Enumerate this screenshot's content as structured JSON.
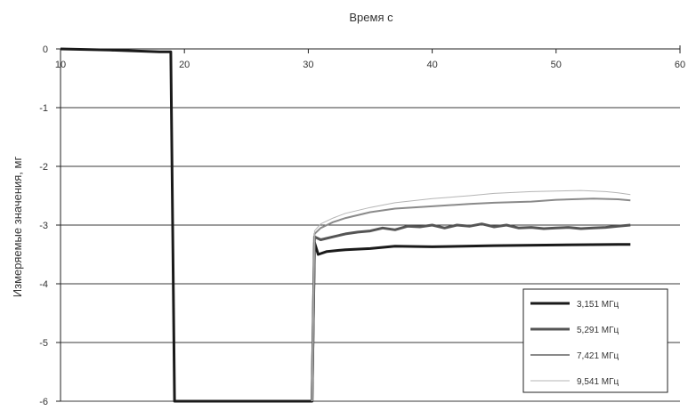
{
  "chart_data": {
    "type": "line",
    "title": "",
    "xlabel": "Время  с",
    "ylabel": "Измеряемые значения, мг",
    "xlim": [
      10,
      60
    ],
    "ylim": [
      -6,
      0
    ],
    "x_ticks": [
      10,
      20,
      30,
      40,
      50,
      60
    ],
    "x_tick_labels": [
      "10",
      "20",
      "30",
      "40",
      "50",
      "60"
    ],
    "y_ticks": [
      0,
      -1,
      -2,
      -3,
      -4,
      -5,
      -6
    ],
    "y_tick_labels": [
      "0",
      "-1",
      "-2",
      "-3",
      "-4",
      "-5",
      "-6"
    ],
    "x_axis_position": "top",
    "grid": "horizontal",
    "legend_position": "bottom-right",
    "series": [
      {
        "name": "3,151 МГц",
        "color": "#1a1a1a",
        "points": [
          [
            10,
            0
          ],
          [
            14,
            -0.02
          ],
          [
            18,
            -0.05
          ],
          [
            18.9,
            -0.05
          ],
          [
            19.2,
            -6
          ],
          [
            30.3,
            -6
          ],
          [
            30.5,
            -3.3
          ],
          [
            30.8,
            -3.5
          ],
          [
            31.5,
            -3.45
          ],
          [
            33,
            -3.42
          ],
          [
            35,
            -3.4
          ],
          [
            37,
            -3.36
          ],
          [
            40,
            -3.37
          ],
          [
            45,
            -3.35
          ],
          [
            50,
            -3.34
          ],
          [
            55,
            -3.33
          ],
          [
            56,
            -3.33
          ]
        ]
      },
      {
        "name": "5,291 МГц",
        "color": "#555555",
        "points": [
          [
            30.3,
            -6
          ],
          [
            30.5,
            -3.2
          ],
          [
            31,
            -3.25
          ],
          [
            32,
            -3.2
          ],
          [
            33,
            -3.15
          ],
          [
            34,
            -3.12
          ],
          [
            35,
            -3.1
          ],
          [
            36,
            -3.05
          ],
          [
            37,
            -3.08
          ],
          [
            38,
            -3.02
          ],
          [
            39,
            -3.03
          ],
          [
            40,
            -3.0
          ],
          [
            41,
            -3.05
          ],
          [
            42,
            -3.0
          ],
          [
            43,
            -3.02
          ],
          [
            44,
            -2.98
          ],
          [
            45,
            -3.03
          ],
          [
            46,
            -3.0
          ],
          [
            47,
            -3.05
          ],
          [
            48,
            -3.04
          ],
          [
            49,
            -3.06
          ],
          [
            50,
            -3.05
          ],
          [
            51,
            -3.04
          ],
          [
            52,
            -3.06
          ],
          [
            53,
            -3.05
          ],
          [
            54,
            -3.04
          ],
          [
            55,
            -3.02
          ],
          [
            56,
            -3.0
          ]
        ]
      },
      {
        "name": "7,421 МГц",
        "color": "#8a8a8a",
        "points": [
          [
            30.3,
            -6
          ],
          [
            30.5,
            -3.15
          ],
          [
            31,
            -3.05
          ],
          [
            32,
            -2.95
          ],
          [
            33,
            -2.88
          ],
          [
            35,
            -2.78
          ],
          [
            37,
            -2.72
          ],
          [
            40,
            -2.68
          ],
          [
            43,
            -2.64
          ],
          [
            45,
            -2.62
          ],
          [
            48,
            -2.6
          ],
          [
            50,
            -2.57
          ],
          [
            53,
            -2.55
          ],
          [
            55,
            -2.56
          ],
          [
            56,
            -2.58
          ]
        ]
      },
      {
        "name": "9,541 МГц",
        "color": "#b5b5b5",
        "points": [
          [
            30.3,
            -6
          ],
          [
            30.5,
            -3.1
          ],
          [
            31,
            -2.98
          ],
          [
            32,
            -2.88
          ],
          [
            33,
            -2.8
          ],
          [
            35,
            -2.7
          ],
          [
            37,
            -2.62
          ],
          [
            40,
            -2.55
          ],
          [
            43,
            -2.5
          ],
          [
            45,
            -2.46
          ],
          [
            48,
            -2.43
          ],
          [
            50,
            -2.42
          ],
          [
            52,
            -2.41
          ],
          [
            54,
            -2.43
          ],
          [
            55,
            -2.45
          ],
          [
            56,
            -2.48
          ]
        ]
      }
    ]
  }
}
